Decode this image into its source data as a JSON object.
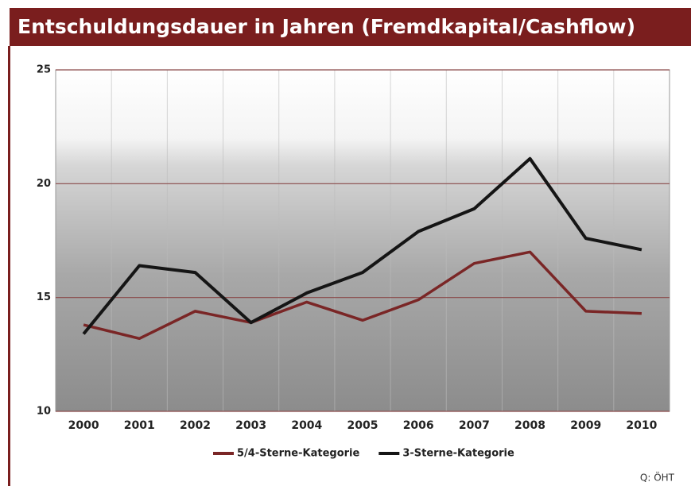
{
  "chart_data": {
    "type": "line",
    "title": "Entschuldungsdauer in Jahren (Fremdkapital/Cashflow)",
    "categories": [
      "2000",
      "2001",
      "2002",
      "2003",
      "2004",
      "2005",
      "2006",
      "2007",
      "2008",
      "2009",
      "2010"
    ],
    "series": [
      {
        "name": "5/4-Sterne-Kategorie",
        "color": "#7a2626",
        "values": [
          13.8,
          13.2,
          14.4,
          13.9,
          14.8,
          14.0,
          14.9,
          16.5,
          17.0,
          14.4,
          14.3
        ]
      },
      {
        "name": "3-Sterne-Kategorie",
        "color": "#151515",
        "values": [
          13.4,
          16.4,
          16.1,
          13.9,
          15.2,
          16.1,
          17.9,
          18.9,
          21.1,
          17.6,
          17.1
        ]
      }
    ],
    "ylim": [
      10,
      25
    ],
    "yticks": [
      10,
      15,
      20,
      25
    ],
    "grid": true,
    "legend": "bottom",
    "source": "Q: ÖHT"
  }
}
